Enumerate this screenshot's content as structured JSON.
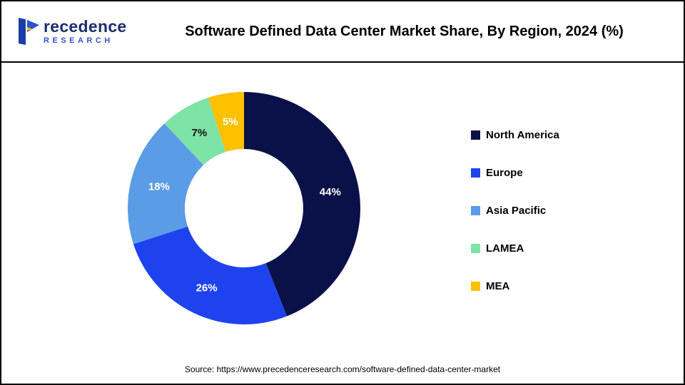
{
  "header": {
    "logo": {
      "word_main": "recedence",
      "word_sub": "RESEARCH"
    },
    "title": "Software Defined Data Center Market Share, By Region, 2024 (%)"
  },
  "chart_data": {
    "type": "pie",
    "subtype": "donut",
    "title": "Software Defined Data Center Market Share, By Region, 2024 (%)",
    "categories": [
      "North America",
      "Europe",
      "Asia Pacific",
      "LAMEA",
      "MEA"
    ],
    "values": [
      44,
      26,
      18,
      7,
      5
    ],
    "labels": [
      "44%",
      "26%",
      "18%",
      "7%",
      "5%"
    ],
    "colors": [
      "#0a1148",
      "#1e43ee",
      "#5b9ce6",
      "#7ee3a6",
      "#ffc000"
    ],
    "label_colors": [
      "#ffffff",
      "#ffffff",
      "#ffffff",
      "#111111",
      "#ffffff"
    ],
    "legend_position": "right",
    "start_angle_deg": 0,
    "direction": "clockwise",
    "inner_radius_ratio": 0.51
  },
  "footer": {
    "source": "Source: https://www.precedenceresearch.com/software-defined-data-center-market"
  }
}
